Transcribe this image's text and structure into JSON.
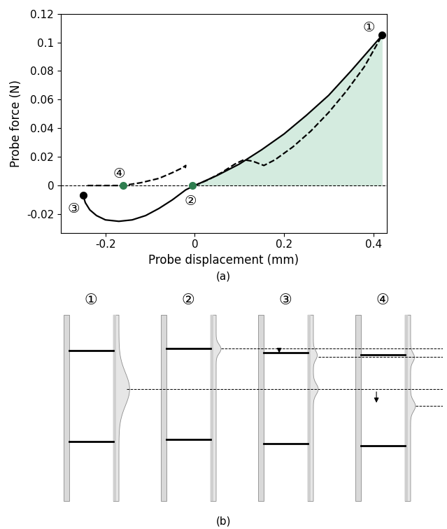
{
  "chart_data": {
    "type": "line",
    "caption": "(a)",
    "x_label": "Probe displacement (mm)",
    "y_label": "Probe force (N)",
    "xlim": [
      -0.3,
      0.43
    ],
    "ylim": [
      -0.033,
      0.12
    ],
    "xticks": [
      -0.2,
      0,
      0.2,
      0.4
    ],
    "yticks": [
      -0.02,
      0,
      0.02,
      0.04,
      0.06,
      0.08,
      0.1,
      0.12
    ],
    "reference_line": 0,
    "series": [
      {
        "type": "area",
        "color": "#d4ebdf",
        "x": [
          0,
          0.05,
          0.1,
          0.15,
          0.2,
          0.25,
          0.3,
          0.35,
          0.42
        ],
        "values": [
          0,
          0.007,
          0.015,
          0.025,
          0.036,
          0.049,
          0.063,
          0.08,
          0.105
        ]
      },
      {
        "type": "line",
        "color": "#000000",
        "line_style": "solid",
        "x": [
          -0.25,
          -0.245,
          -0.235,
          -0.22,
          -0.2,
          -0.17,
          -0.14,
          -0.11,
          -0.08,
          -0.05,
          -0.02,
          0,
          0.05,
          0.1,
          0.15,
          0.2,
          0.25,
          0.3,
          0.35,
          0.42
        ],
        "values": [
          -0.007,
          -0.012,
          -0.017,
          -0.021,
          -0.024,
          -0.025,
          -0.024,
          -0.021,
          -0.016,
          -0.01,
          -0.003,
          0,
          0.007,
          0.015,
          0.025,
          0.036,
          0.049,
          0.063,
          0.08,
          0.105
        ]
      },
      {
        "type": "line",
        "color": "#000000",
        "line_style": "dashed",
        "x": [
          0,
          0.03,
          0.06,
          0.09,
          0.11,
          0.13,
          0.155,
          0.18,
          0.22,
          0.26,
          0.3,
          0.34,
          0.38,
          0.42
        ],
        "values": [
          0,
          0.004,
          0.009,
          0.015,
          0.018,
          0.017,
          0.014,
          0.018,
          0.027,
          0.038,
          0.051,
          0.066,
          0.083,
          0.105
        ]
      },
      {
        "type": "line",
        "color": "#000000",
        "line_style": "dashed",
        "x": [
          -0.24,
          -0.2,
          -0.16,
          -0.12,
          -0.08,
          -0.05,
          -0.03,
          -0.02,
          -0.022
        ],
        "values": [
          0,
          0,
          0,
          0.002,
          0.005,
          0.009,
          0.012,
          0.014,
          0.011
        ]
      }
    ],
    "annotations": [
      {
        "label": "①",
        "x": 0.42,
        "y": 0.105,
        "color": "#000000"
      },
      {
        "label": "②",
        "x": -0.005,
        "y": 0,
        "color": "#2e7d4f"
      },
      {
        "label": "③",
        "x": -0.25,
        "y": -0.007,
        "color": "#000000"
      },
      {
        "label": "④",
        "x": -0.16,
        "y": 0,
        "color": "#2e7d4f"
      }
    ]
  },
  "diagram": {
    "caption": "(b)",
    "panels": [
      {
        "label": "①"
      },
      {
        "label": "②"
      },
      {
        "label": "③"
      },
      {
        "label": "④"
      }
    ]
  }
}
